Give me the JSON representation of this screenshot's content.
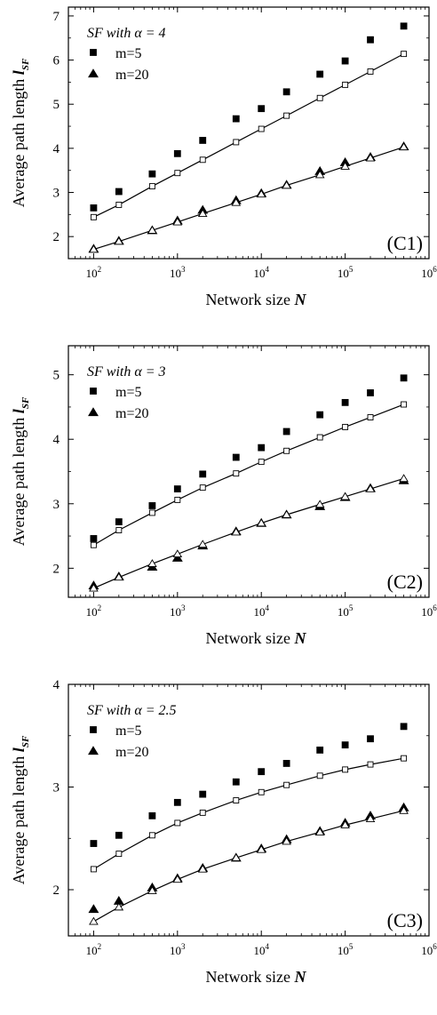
{
  "chart_data": [
    {
      "type": "scatter",
      "xscale": "log",
      "xlim": [
        50,
        1000000
      ],
      "ylim": [
        1.5,
        7.2
      ],
      "yticks": [
        2,
        3,
        4,
        5,
        6,
        7
      ],
      "xticks": [
        100,
        1000,
        10000,
        100000,
        1000000
      ],
      "xtick_labels": [
        {
          "base": "10",
          "exp": "2"
        },
        {
          "base": "10",
          "exp": "3"
        },
        {
          "base": "10",
          "exp": "4"
        },
        {
          "base": "10",
          "exp": "5"
        },
        {
          "base": "10",
          "exp": "6"
        }
      ],
      "ytick_labels": [
        "2",
        "3",
        "4",
        "5",
        "6",
        "7"
      ],
      "xlabel": {
        "text": "Network size ",
        "var": "N"
      },
      "ylabel": {
        "text": "Average path length ",
        "var": "l",
        "sub": "SF"
      },
      "legend": {
        "title_prefix": "SF with ",
        "title_alpha": "α = 4",
        "placement": "top-left"
      },
      "panel_label": "(C1)",
      "x": [
        100,
        200,
        500,
        1000,
        2000,
        5000,
        10000,
        20000,
        50000,
        100000,
        200000,
        500000
      ],
      "series": [
        {
          "name": "m=5",
          "marker": "square",
          "filled": true,
          "values": [
            2.65,
            3.02,
            3.42,
            3.88,
            4.18,
            4.67,
            4.9,
            5.28,
            5.68,
            5.98,
            6.46,
            6.77
          ]
        },
        {
          "name": "m=20",
          "marker": "triangle",
          "filled": true,
          "values": [
            1.72,
            1.9,
            2.14,
            2.36,
            2.6,
            2.82,
            2.98,
            3.17,
            3.48,
            3.68,
            3.8,
            4.04
          ]
        },
        {
          "name": "",
          "marker": "square",
          "filled": false,
          "line": true,
          "values": [
            2.44,
            2.72,
            3.14,
            3.44,
            3.74,
            4.14,
            4.44,
            4.74,
            5.14,
            5.44,
            5.74,
            6.14
          ]
        },
        {
          "name": "",
          "marker": "triangle",
          "filled": false,
          "line": true,
          "values": [
            1.71,
            1.89,
            2.14,
            2.33,
            2.52,
            2.77,
            2.96,
            3.16,
            3.4,
            3.59,
            3.78,
            4.03
          ]
        }
      ]
    },
    {
      "type": "scatter",
      "xscale": "log",
      "xlim": [
        50,
        1000000
      ],
      "ylim": [
        1.55,
        5.45
      ],
      "yticks": [
        2,
        3,
        4,
        5
      ],
      "xticks": [
        100,
        1000,
        10000,
        100000,
        1000000
      ],
      "xtick_labels": [
        {
          "base": "10",
          "exp": "2"
        },
        {
          "base": "10",
          "exp": "3"
        },
        {
          "base": "10",
          "exp": "4"
        },
        {
          "base": "10",
          "exp": "5"
        },
        {
          "base": "10",
          "exp": "6"
        }
      ],
      "ytick_labels": [
        "2",
        "3",
        "4",
        "5"
      ],
      "xlabel": {
        "text": "Network size ",
        "var": "N"
      },
      "ylabel": {
        "text": "Average path length ",
        "var": "l",
        "sub": "SF"
      },
      "legend": {
        "title_prefix": "SF with ",
        "title_alpha": "α = 3",
        "placement": "top-left"
      },
      "panel_label": "(C2)",
      "x": [
        100,
        200,
        500,
        1000,
        2000,
        5000,
        10000,
        20000,
        50000,
        100000,
        200000,
        500000
      ],
      "series": [
        {
          "name": "m=5",
          "marker": "square",
          "filled": true,
          "values": [
            2.46,
            2.72,
            2.97,
            3.23,
            3.46,
            3.72,
            3.87,
            4.12,
            4.38,
            4.57,
            4.72,
            4.95
          ]
        },
        {
          "name": "m=20",
          "marker": "triangle",
          "filled": true,
          "values": [
            1.73,
            1.87,
            2.02,
            2.16,
            2.35,
            2.57,
            2.7,
            2.83,
            2.96,
            3.1,
            3.24,
            3.36
          ]
        },
        {
          "name": "",
          "marker": "square",
          "filled": false,
          "line": true,
          "values": [
            2.36,
            2.59,
            2.86,
            3.06,
            3.25,
            3.47,
            3.65,
            3.82,
            4.03,
            4.19,
            4.34,
            4.54
          ]
        },
        {
          "name": "",
          "marker": "triangle",
          "filled": false,
          "line": true,
          "values": [
            1.69,
            1.86,
            2.07,
            2.22,
            2.37,
            2.56,
            2.7,
            2.83,
            2.99,
            3.11,
            3.23,
            3.39
          ]
        }
      ]
    },
    {
      "type": "scatter",
      "xscale": "log",
      "xlim": [
        50,
        1000000
      ],
      "ylim": [
        1.55,
        4.0
      ],
      "yticks": [
        2,
        3,
        4
      ],
      "xticks": [
        100,
        1000,
        10000,
        100000,
        1000000
      ],
      "xtick_labels": [
        {
          "base": "10",
          "exp": "2"
        },
        {
          "base": "10",
          "exp": "3"
        },
        {
          "base": "10",
          "exp": "4"
        },
        {
          "base": "10",
          "exp": "5"
        },
        {
          "base": "10",
          "exp": "6"
        }
      ],
      "ytick_labels": [
        "2",
        "3",
        "4"
      ],
      "xlabel": {
        "text": "Network size ",
        "var": "N"
      },
      "ylabel": {
        "text": "Average path length ",
        "var": "l",
        "sub": "SF"
      },
      "legend": {
        "title_prefix": "SF with ",
        "title_alpha": "α = 2.5",
        "placement": "top-left"
      },
      "panel_label": "(C3)",
      "x": [
        100,
        200,
        500,
        1000,
        2000,
        5000,
        10000,
        20000,
        50000,
        100000,
        200000,
        500000
      ],
      "series": [
        {
          "name": "m=5",
          "marker": "square",
          "filled": true,
          "values": [
            2.45,
            2.53,
            2.72,
            2.85,
            2.93,
            3.05,
            3.15,
            3.23,
            3.36,
            3.41,
            3.47,
            3.59
          ]
        },
        {
          "name": "m=20",
          "marker": "triangle",
          "filled": true,
          "values": [
            1.81,
            1.89,
            2.02,
            2.11,
            2.21,
            2.31,
            2.4,
            2.49,
            2.57,
            2.65,
            2.72,
            2.8
          ]
        },
        {
          "name": "",
          "marker": "square",
          "filled": false,
          "line": true,
          "values": [
            2.2,
            2.35,
            2.53,
            2.65,
            2.75,
            2.87,
            2.95,
            3.02,
            3.11,
            3.17,
            3.22,
            3.28
          ]
        },
        {
          "name": "",
          "marker": "triangle",
          "filled": false,
          "line": true,
          "values": [
            1.69,
            1.83,
            1.99,
            2.1,
            2.2,
            2.31,
            2.39,
            2.47,
            2.56,
            2.63,
            2.69,
            2.77
          ]
        }
      ]
    }
  ]
}
